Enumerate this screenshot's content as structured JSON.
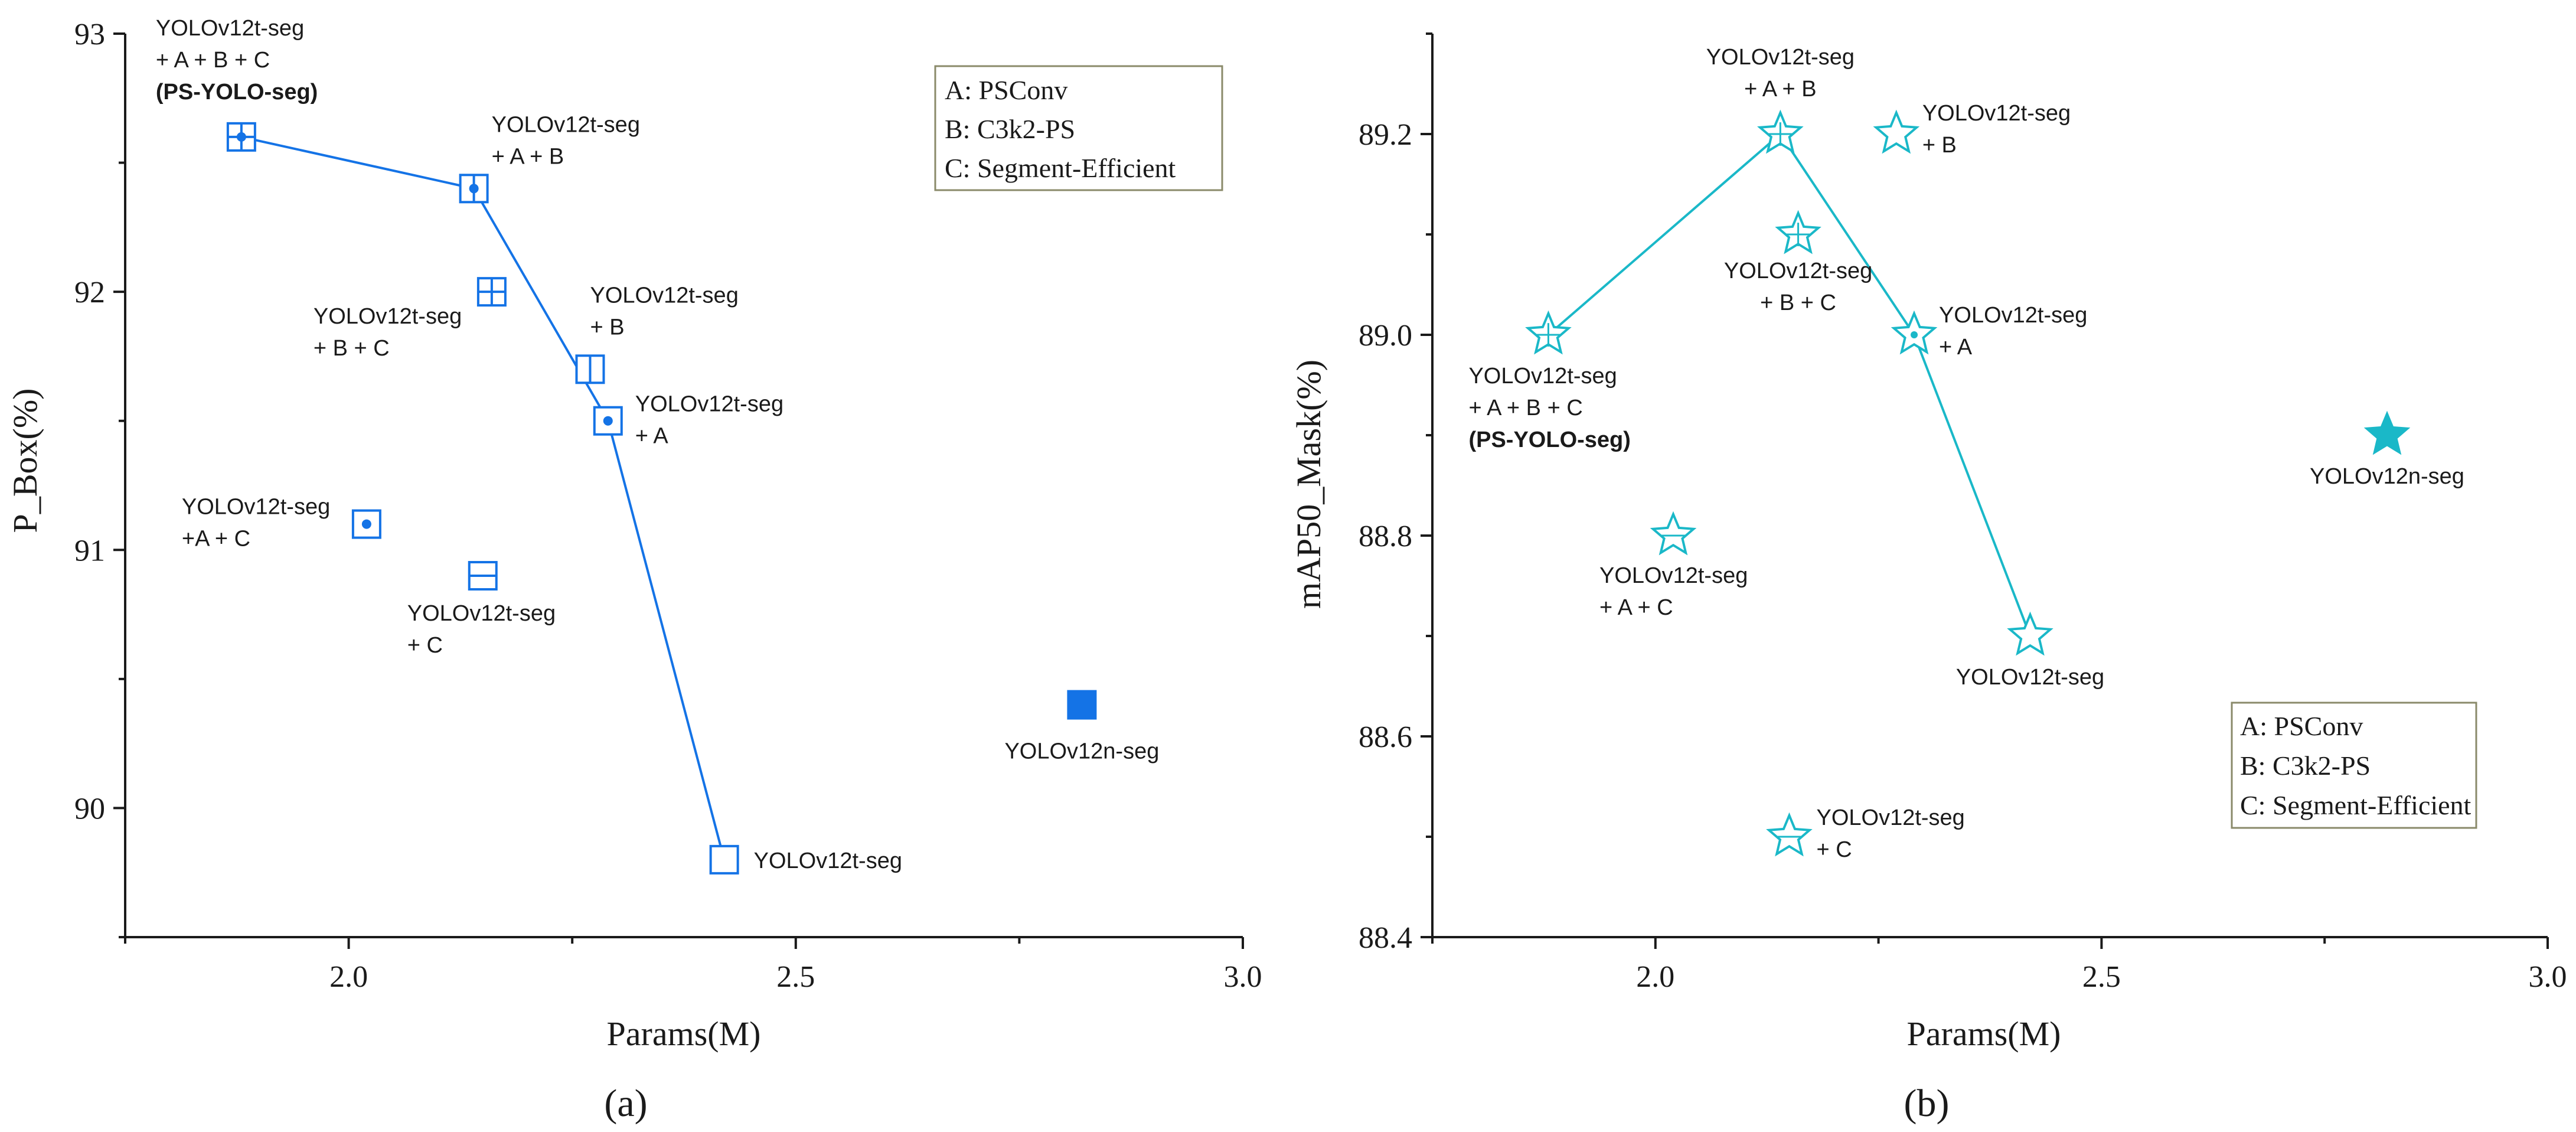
{
  "chart_data": [
    {
      "type": "scatter",
      "panel_caption": "(a)",
      "xlabel": "Params(M)",
      "ylabel": "P_Box(%)",
      "xlim": [
        1.75,
        3.0
      ],
      "ylim": [
        89.5,
        93.0
      ],
      "x_ticks": [
        "2.0",
        "2.5",
        "3.0"
      ],
      "y_ticks": [
        "90",
        "91",
        "92",
        "93"
      ],
      "color": "#1473E6",
      "legend": {
        "position": "top-right",
        "entries": [
          "A:  PSConv",
          "B:  C3k2-PS",
          "C:  Segment-Efficient"
        ]
      },
      "points": [
        {
          "id": "abc",
          "x": 1.88,
          "y": 92.6,
          "marker": "square-cross",
          "label_lines": [
            "YOLOv12t-seg",
            "+ A + B + C",
            "(PS-YOLO-seg)"
          ]
        },
        {
          "id": "ab",
          "x": 2.14,
          "y": 92.4,
          "marker": "square-vline-dot",
          "label_lines": [
            "YOLOv12t-seg",
            "+ A + B"
          ]
        },
        {
          "id": "bc",
          "x": 2.16,
          "y": 92.0,
          "marker": "square-cross",
          "label_lines": [
            "YOLOv12t-seg",
            "+ B + C"
          ]
        },
        {
          "id": "b",
          "x": 2.27,
          "y": 91.7,
          "marker": "square-vline",
          "label_lines": [
            "YOLOv12t-seg",
            "+ B"
          ]
        },
        {
          "id": "a",
          "x": 2.29,
          "y": 91.5,
          "marker": "square-dot",
          "label_lines": [
            "YOLOv12t-seg",
            "+ A"
          ]
        },
        {
          "id": "ac",
          "x": 2.02,
          "y": 91.1,
          "marker": "square-dot",
          "label_lines": [
            "YOLOv12t-seg",
            "+A + C"
          ]
        },
        {
          "id": "c",
          "x": 2.15,
          "y": 90.9,
          "marker": "square-hline",
          "label_lines": [
            "YOLOv12t-seg",
            "+ C"
          ]
        },
        {
          "id": "base",
          "x": 2.42,
          "y": 89.8,
          "marker": "square-open",
          "label_lines": [
            "YOLOv12t-seg"
          ]
        },
        {
          "id": "v12n",
          "x": 2.82,
          "y": 90.4,
          "marker": "square-filled",
          "label_lines": [
            "YOLOv12n-seg"
          ]
        }
      ],
      "line_series": [
        "abc",
        "ab",
        "a",
        "base"
      ]
    },
    {
      "type": "scatter",
      "panel_caption": "(b)",
      "xlabel": "Params(M)",
      "ylabel": "mAP50_Mask(%)",
      "xlim": [
        1.75,
        3.0
      ],
      "ylim": [
        88.4,
        89.3
      ],
      "x_ticks": [
        "2.0",
        "2.5",
        "3.0"
      ],
      "y_ticks": [
        "88.4",
        "88.6",
        "88.8",
        "89.0",
        "89.2"
      ],
      "color": "#1AB8C8",
      "legend": {
        "position": "bottom-right",
        "entries": [
          "A:  PSConv",
          "B:  C3k2-PS",
          "C:  Segment-Efficient"
        ]
      },
      "points": [
        {
          "id": "abc",
          "x": 1.88,
          "y": 89.0,
          "marker": "star-cross",
          "label_lines": [
            "YOLOv12t-seg",
            "+ A + B + C",
            "(PS-YOLO-seg)"
          ]
        },
        {
          "id": "ab",
          "x": 2.14,
          "y": 89.2,
          "marker": "star-cross",
          "label_lines": [
            "YOLOv12t-seg",
            "+ A + B"
          ]
        },
        {
          "id": "b",
          "x": 2.27,
          "y": 89.2,
          "marker": "star-open",
          "label_lines": [
            "YOLOv12t-seg",
            "+ B"
          ]
        },
        {
          "id": "bc",
          "x": 2.16,
          "y": 89.1,
          "marker": "star-cross",
          "label_lines": [
            "YOLOv12t-seg",
            "+ B + C"
          ]
        },
        {
          "id": "a",
          "x": 2.29,
          "y": 89.0,
          "marker": "star-dot",
          "label_lines": [
            "YOLOv12t-seg",
            "+ A"
          ]
        },
        {
          "id": "v12n",
          "x": 2.82,
          "y": 88.9,
          "marker": "star-filled",
          "label_lines": [
            "YOLOv12n-seg"
          ]
        },
        {
          "id": "ac",
          "x": 2.02,
          "y": 88.8,
          "marker": "star-hline",
          "label_lines": [
            "YOLOv12t-seg",
            "+ A + C"
          ]
        },
        {
          "id": "base",
          "x": 2.42,
          "y": 88.7,
          "marker": "star-open",
          "label_lines": [
            "YOLOv12t-seg"
          ]
        },
        {
          "id": "c",
          "x": 2.15,
          "y": 88.5,
          "marker": "star-hline",
          "label_lines": [
            "YOLOv12t-seg",
            "+ C"
          ]
        }
      ],
      "line_series": [
        "abc",
        "ab",
        "a",
        "base"
      ]
    }
  ]
}
